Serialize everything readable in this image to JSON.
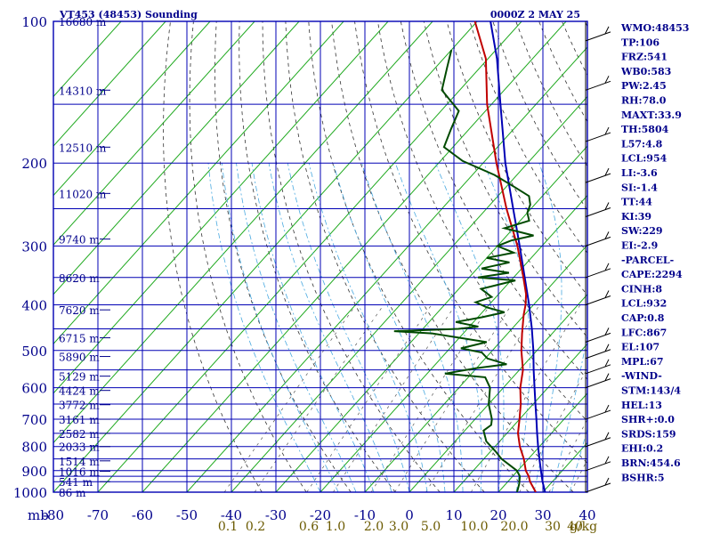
{
  "header": {
    "title": "VT453 (48453) Sounding",
    "datetime": "0000Z  2 MAY 25"
  },
  "axis": {
    "pressure_unit_label": "mb",
    "pressure_ticks": [
      "100",
      "200",
      "300",
      "400",
      "500",
      "600",
      "700",
      "800",
      "900",
      "1000"
    ],
    "temp_ticks": [
      "-80",
      "-70",
      "-60",
      "-50",
      "-40",
      "-30",
      "-20",
      "-10",
      "0",
      "10",
      "20",
      "30",
      "40"
    ],
    "mixing_ratio_ticks": [
      "0.1",
      "0.2",
      "0.6",
      "1.0",
      "2.0",
      "3.0",
      "5.0",
      "10.0",
      "20.0",
      "30",
      "40"
    ],
    "mixing_ratio_unit": "g/kg",
    "height_labels": [
      "16680 m",
      "14310 m",
      "12510 m",
      "11020 m",
      "9740 m",
      "8620 m",
      "7620 m",
      "6715 m",
      "5890 m",
      "5129 m",
      "4424 m",
      "3772 m",
      "3161 m",
      "2582 m",
      "2033 m",
      "1514 m",
      "1016 m",
      "541 m",
      "86 m"
    ]
  },
  "indices": [
    "WMO:48453",
    "TP:106",
    "FRZ:541",
    "WB0:583",
    "PW:2.45",
    "RH:78.0",
    "MAXT:33.9",
    "TH:5804",
    "L57:4.8",
    "LCL:954",
    "LI:-3.6",
    "SI:-1.4",
    "TT:44",
    "KI:39",
    "SW:229",
    "EI:-2.9",
    "-PARCEL-",
    "CAPE:2294",
    "CINH:8",
    "LCL:932",
    "CAP:0.8",
    "LFC:867",
    "EL:107",
    "MPL:67",
    "-WIND-",
    "STM:143/4",
    "HEL:13",
    "SHR+:0.0",
    "SRDS:159",
    "EHI:0.2",
    "BRN:454.6",
    "BSHR:5"
  ],
  "chart_data": {
    "type": "line",
    "title": "VT453 (48453) Sounding",
    "subtitle": "0000Z  2 MAY 25",
    "xlabel": "",
    "ylabel": "mb",
    "y_scale": "log (pressure, inverted)",
    "xlim": [
      -80,
      40
    ],
    "ylim": [
      1000,
      100
    ],
    "grid": true,
    "series": [
      {
        "role": "parcel",
        "color": "#0000b4",
        "points": [
          [
            1000,
            30.5
          ],
          [
            950,
            27.8
          ],
          [
            900,
            25.2
          ],
          [
            850,
            22.5
          ],
          [
            800,
            19.7
          ],
          [
            750,
            16.8
          ],
          [
            700,
            13.8
          ],
          [
            650,
            10.5
          ],
          [
            600,
            7.0
          ],
          [
            550,
            3.2
          ],
          [
            500,
            -0.8
          ],
          [
            450,
            -5.5
          ],
          [
            400,
            -11.0
          ],
          [
            350,
            -17.5
          ],
          [
            300,
            -25.0
          ],
          [
            250,
            -34.0
          ],
          [
            200,
            -45.0
          ],
          [
            150,
            -58.0
          ],
          [
            120,
            -68.0
          ],
          [
            100,
            -77.0
          ]
        ]
      },
      {
        "role": "temperature",
        "color": "#c00000",
        "points": [
          [
            1000,
            28.4
          ],
          [
            950,
            25.0
          ],
          [
            925,
            23.6
          ],
          [
            900,
            21.8
          ],
          [
            850,
            19.0
          ],
          [
            800,
            15.6
          ],
          [
            750,
            12.5
          ],
          [
            700,
            10.0
          ],
          [
            650,
            7.2
          ],
          [
            600,
            3.8
          ],
          [
            550,
            0.8
          ],
          [
            500,
            -3.5
          ],
          [
            460,
            -6.8
          ],
          [
            420,
            -10.2
          ],
          [
            400,
            -11.8
          ],
          [
            380,
            -13.8
          ],
          [
            350,
            -17.8
          ],
          [
            300,
            -25.5
          ],
          [
            250,
            -35.5
          ],
          [
            200,
            -47.0
          ],
          [
            150,
            -61.0
          ],
          [
            120,
            -70.5
          ],
          [
            100,
            -80.5
          ]
        ]
      },
      {
        "role": "dewpoint",
        "color": "#004a00",
        "points": [
          [
            1000,
            24.2
          ],
          [
            960,
            23.0
          ],
          [
            925,
            21.6
          ],
          [
            900,
            19.8
          ],
          [
            850,
            14.0
          ],
          [
            820,
            11.2
          ],
          [
            780,
            7.0
          ],
          [
            740,
            4.2
          ],
          [
            720,
            4.8
          ],
          [
            700,
            3.8
          ],
          [
            650,
            0.0
          ],
          [
            600,
            -3.0
          ],
          [
            570,
            -6.2
          ],
          [
            560,
            -16.0
          ],
          [
            545,
            -10.0
          ],
          [
            535,
            -4.0
          ],
          [
            520,
            -9.5
          ],
          [
            505,
            -12.0
          ],
          [
            495,
            -17.5
          ],
          [
            480,
            -13.0
          ],
          [
            470,
            -20.0
          ],
          [
            460,
            -27.0
          ],
          [
            455,
            -36.0
          ],
          [
            450,
            -22.0
          ],
          [
            445,
            -18.0
          ],
          [
            435,
            -24.0
          ],
          [
            425,
            -19.0
          ],
          [
            415,
            -15.0
          ],
          [
            405,
            -20.0
          ],
          [
            395,
            -23.5
          ],
          [
            385,
            -21.0
          ],
          [
            370,
            -25.0
          ],
          [
            355,
            -19.0
          ],
          [
            350,
            -28.0
          ],
          [
            342,
            -22.0
          ],
          [
            335,
            -29.0
          ],
          [
            325,
            -24.0
          ],
          [
            318,
            -30.0
          ],
          [
            310,
            -25.0
          ],
          [
            300,
            -30.0
          ],
          [
            292,
            -28.0
          ],
          [
            285,
            -24.0
          ],
          [
            275,
            -32.0
          ],
          [
            265,
            -28.0
          ],
          [
            255,
            -30.0
          ],
          [
            245,
            -31.0
          ],
          [
            235,
            -33.0
          ],
          [
            225,
            -38.0
          ],
          [
            212,
            -45.0
          ],
          [
            198,
            -55.0
          ],
          [
            185,
            -62.0
          ],
          [
            170,
            -64.0
          ],
          [
            155,
            -66.0
          ],
          [
            140,
            -74.0
          ],
          [
            125,
            -77.5
          ],
          [
            115,
            -80.0
          ]
        ]
      }
    ]
  }
}
